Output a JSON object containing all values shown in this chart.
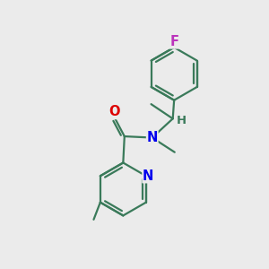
{
  "bg_color": "#ebebeb",
  "bond_color": "#3a7a5a",
  "bond_width": 1.6,
  "atom_colors": {
    "N": "#0000ee",
    "O": "#dd0000",
    "F": "#bb33bb",
    "H": "#3a7a5a"
  },
  "font_size": 10.5,
  "figsize": [
    3.0,
    3.0
  ],
  "dpi": 100
}
